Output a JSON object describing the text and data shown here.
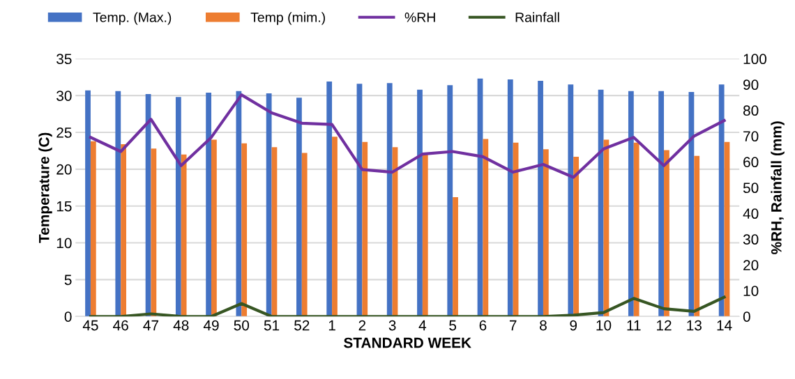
{
  "chart_data": {
    "type": "bar",
    "xlabel": "STANDARD WEEK",
    "ylabel": "Temperature (C)",
    "y2label": "%RH, Rainfall (mm)",
    "categories": [
      "45",
      "46",
      "47",
      "48",
      "49",
      "50",
      "51",
      "52",
      "1",
      "2",
      "3",
      "4",
      "5",
      "6",
      "7",
      "8",
      "9",
      "10",
      "11",
      "12",
      "13",
      "14"
    ],
    "series": [
      {
        "name": "Temp. (Max.)",
        "color": "#4472c4",
        "values": [
          30.7,
          30.6,
          30.2,
          29.8,
          30.4,
          30.6,
          30.3,
          29.7,
          31.9,
          31.6,
          31.7,
          30.8,
          31.4,
          32.3,
          32.2,
          32.0,
          31.5,
          30.8,
          30.6,
          30.6,
          30.5,
          31.5
        ]
      },
      {
        "name": "Temp (mim.)",
        "color": "#ed7d31",
        "values": [
          23.8,
          23.4,
          22.8,
          22.0,
          24.0,
          23.5,
          23.0,
          22.2,
          24.4,
          23.7,
          23.0,
          22.2,
          16.2,
          24.1,
          23.6,
          22.7,
          21.7,
          24.0,
          23.6,
          22.6,
          21.8,
          23.7
        ]
      },
      {
        "name": "%RH",
        "type": "line",
        "axis": "y2",
        "color": "#7030a0",
        "values": [
          69.5,
          64,
          76.5,
          58.5,
          69.5,
          86,
          79,
          75,
          74.5,
          57,
          56,
          63,
          64,
          62,
          56,
          59,
          54,
          65,
          69.5,
          58.5,
          70,
          76
        ]
      },
      {
        "name": "Rainfall",
        "type": "line",
        "axis": "y2",
        "color": "#375623",
        "values": [
          0,
          0,
          1,
          0,
          0,
          5,
          0,
          0,
          0,
          0,
          0,
          0,
          0,
          0,
          0,
          0,
          0.5,
          1.5,
          7,
          3,
          2,
          7.5
        ]
      }
    ],
    "ylim": [
      0,
      35
    ],
    "yticks": [
      0,
      5,
      10,
      15,
      20,
      25,
      30,
      35
    ],
    "y2lim": [
      0,
      100
    ],
    "y2ticks": [
      0,
      10,
      20,
      30,
      40,
      50,
      60,
      70,
      80,
      90,
      100
    ],
    "grid": "y",
    "legend": "top left",
    "marker": "none",
    "line_style": "solid"
  }
}
